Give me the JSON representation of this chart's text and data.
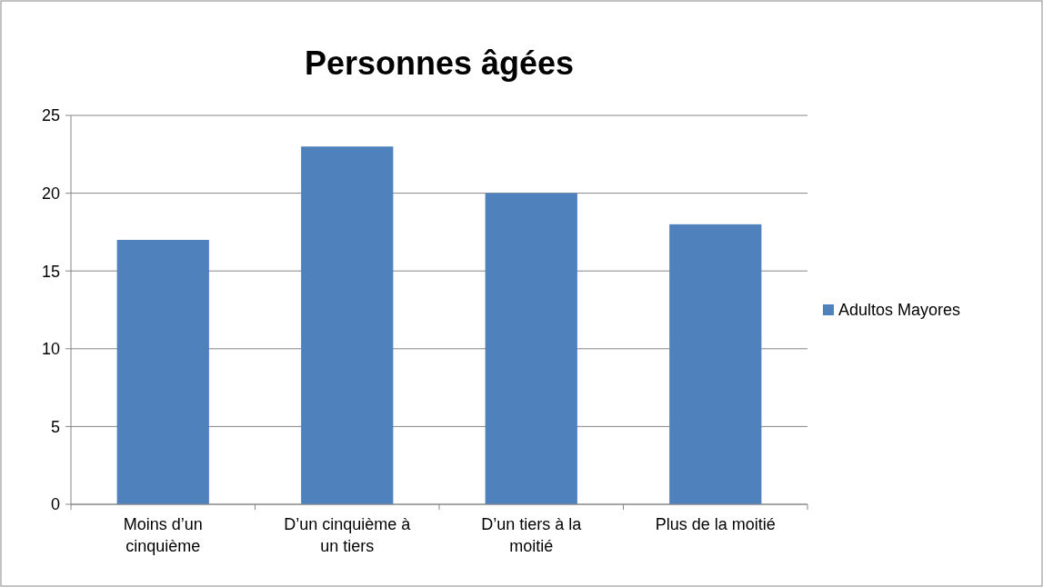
{
  "chart_data": {
    "type": "bar",
    "title": "Personnes âgées",
    "categories": [
      "Moins d’un cinquième",
      "D’un cinquième à un tiers",
      "D’un tiers à la moitié",
      "Plus de la moitié"
    ],
    "series": [
      {
        "name": "Adultos Mayores",
        "color": "#4f81bd",
        "values": [
          17,
          23,
          20,
          18
        ]
      }
    ],
    "ylim": [
      0,
      25
    ],
    "yticks": [
      0,
      5,
      10,
      15,
      20,
      25
    ],
    "grid": "y",
    "legend": "right"
  }
}
